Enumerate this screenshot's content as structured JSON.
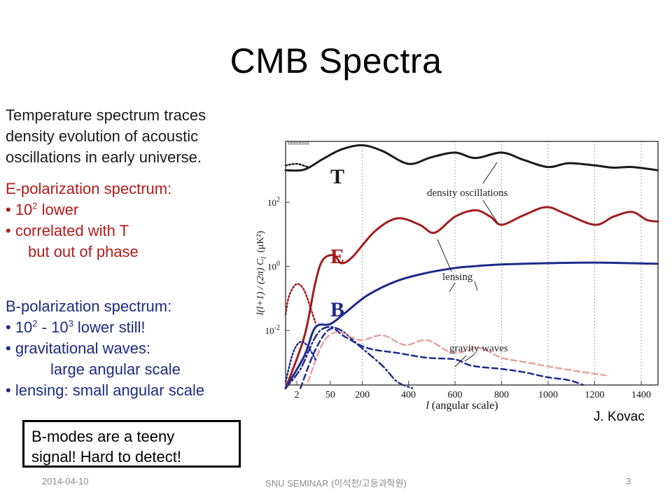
{
  "slide": {
    "title": "CMB Spectra",
    "temperature_text": [
      "Temperature spectrum traces",
      "density evolution of acoustic",
      "oscillations in early universe."
    ],
    "e_heading": "E-polarization spectrum:",
    "e_bullet1_base": "• 10",
    "e_bullet1_exp": "2",
    "e_bullet1_rest": " lower",
    "e_bullet2a": "• correlated with T",
    "e_bullet2b": "but out of phase",
    "b_heading": "B-polarization spectrum:",
    "b_bullet1_base": "• 10",
    "b_bullet1_exp1": "2",
    "b_bullet1_mid": " - 10",
    "b_bullet1_exp2": "3",
    "b_bullet1_rest": " lower still!",
    "b_bullet2a": "• gravitational waves:",
    "b_bullet2b": "large angular scale",
    "b_bullet3": "• lensing: small angular scale",
    "callout": [
      "B-modes are a teeny",
      "signal! Hard to detect!"
    ],
    "credit": "J. Kovac"
  },
  "footer": {
    "date": "2014-04-10",
    "center": "SNU SEMINAR (이석천/고등과학원)",
    "page": "3"
  },
  "colors": {
    "T": "#1a1a1a",
    "E": "#a21d1d",
    "B": "#1f2a8a",
    "pink": "#e8a0a0"
  },
  "chart_data": {
    "type": "line",
    "xlabel_var": "l",
    "xlabel_rest": " (angular scale)",
    "ylabel": "l(l+1) / (2π)  C",
    "ylabel_sub": "l",
    "ylabel_unit": "(μK²)",
    "x_ticks": [
      {
        "label": "2",
        "p": 0.03
      },
      {
        "label": "50",
        "p": 0.12
      },
      {
        "label": "200",
        "p": 0.206
      },
      {
        "label": "400",
        "p": 0.33
      },
      {
        "label": "600",
        "p": 0.455
      },
      {
        "label": "800",
        "p": 0.58
      },
      {
        "label": "1000",
        "p": 0.705
      },
      {
        "label": "1200",
        "p": 0.83
      },
      {
        "label": "1400",
        "p": 0.955
      }
    ],
    "y_ticks": [
      {
        "label": "10",
        "exp": "2",
        "v": 2
      },
      {
        "label": "10",
        "exp": "0",
        "v": 0
      },
      {
        "label": "10",
        "exp": "-2",
        "v": -2
      }
    ],
    "ylim": [
      -3.7,
      3.9
    ],
    "grid_x_p": [
      0.206,
      0.455,
      0.58,
      0.705,
      0.83,
      0.955
    ],
    "labels": {
      "T": "T",
      "E": "E",
      "B": "B"
    },
    "annotations": [
      "density oscillations",
      "lensing",
      "gravity waves"
    ],
    "series": [
      {
        "key": "T",
        "style": "solid",
        "points": [
          [
            0.0,
            3.0
          ],
          [
            0.05,
            3.02
          ],
          [
            0.1,
            3.35
          ],
          [
            0.15,
            3.65
          ],
          [
            0.206,
            3.78
          ],
          [
            0.26,
            3.6
          ],
          [
            0.33,
            3.2
          ],
          [
            0.39,
            3.4
          ],
          [
            0.455,
            3.55
          ],
          [
            0.51,
            3.38
          ],
          [
            0.58,
            3.55
          ],
          [
            0.64,
            3.32
          ],
          [
            0.705,
            3.1
          ],
          [
            0.76,
            3.22
          ],
          [
            0.83,
            3.15
          ],
          [
            0.88,
            3.08
          ],
          [
            0.93,
            3.1
          ],
          [
            1.0,
            3.0
          ]
        ]
      },
      {
        "key": "E",
        "style": "solid",
        "points": [
          [
            0.0,
            -3.8
          ],
          [
            0.05,
            -2.2
          ],
          [
            0.08,
            -0.5
          ],
          [
            0.1,
            0.2
          ],
          [
            0.13,
            0.35
          ],
          [
            0.15,
            0.1
          ],
          [
            0.18,
            0.3
          ],
          [
            0.24,
            1.1
          ],
          [
            0.3,
            1.5
          ],
          [
            0.36,
            1.3
          ],
          [
            0.4,
            1.05
          ],
          [
            0.455,
            1.55
          ],
          [
            0.51,
            1.75
          ],
          [
            0.55,
            1.55
          ],
          [
            0.58,
            1.3
          ],
          [
            0.64,
            1.6
          ],
          [
            0.7,
            1.85
          ],
          [
            0.75,
            1.65
          ],
          [
            0.83,
            1.3
          ],
          [
            0.88,
            1.55
          ],
          [
            0.93,
            1.7
          ],
          [
            0.97,
            1.45
          ],
          [
            1.0,
            1.4
          ]
        ]
      },
      {
        "key": "B",
        "style": "solid",
        "points": [
          [
            0.0,
            -3.8
          ],
          [
            0.05,
            -2.8
          ],
          [
            0.08,
            -1.9
          ],
          [
            0.12,
            -1.8
          ],
          [
            0.16,
            -1.45
          ],
          [
            0.22,
            -0.9
          ],
          [
            0.3,
            -0.45
          ],
          [
            0.38,
            -0.2
          ],
          [
            0.455,
            -0.05
          ],
          [
            0.5,
            0.0
          ],
          [
            0.58,
            0.06
          ],
          [
            0.7,
            0.1
          ],
          [
            0.83,
            0.12
          ],
          [
            0.93,
            0.1
          ],
          [
            1.0,
            0.08
          ]
        ]
      },
      {
        "key": "B",
        "style": "dashdot",
        "points": [
          [
            0.0,
            -3.8
          ],
          [
            0.04,
            -3.2
          ],
          [
            0.08,
            -2.2
          ],
          [
            0.11,
            -1.9
          ],
          [
            0.15,
            -2.0
          ],
          [
            0.2,
            -2.5
          ],
          [
            0.26,
            -3.1
          ],
          [
            0.3,
            -3.6
          ],
          [
            0.34,
            -3.8
          ]
        ]
      },
      {
        "key": "B",
        "style": "dashed",
        "points": [
          [
            0.04,
            -3.8
          ],
          [
            0.08,
            -2.6
          ],
          [
            0.12,
            -1.95
          ],
          [
            0.16,
            -2.2
          ],
          [
            0.22,
            -2.55
          ],
          [
            0.3,
            -2.7
          ],
          [
            0.38,
            -2.85
          ],
          [
            0.455,
            -2.9
          ],
          [
            0.5,
            -3.1
          ],
          [
            0.58,
            -3.2
          ],
          [
            0.64,
            -3.3
          ],
          [
            0.7,
            -3.45
          ],
          [
            0.76,
            -3.55
          ],
          [
            0.8,
            -3.7
          ]
        ]
      },
      {
        "key": "pink",
        "style": "dashed",
        "points": [
          [
            0.06,
            -3.6
          ],
          [
            0.1,
            -2.4
          ],
          [
            0.14,
            -2.05
          ],
          [
            0.2,
            -2.3
          ],
          [
            0.26,
            -2.15
          ],
          [
            0.32,
            -2.45
          ],
          [
            0.38,
            -2.3
          ],
          [
            0.45,
            -2.7
          ],
          [
            0.52,
            -2.55
          ],
          [
            0.58,
            -2.85
          ],
          [
            0.65,
            -3.0
          ],
          [
            0.72,
            -3.15
          ],
          [
            0.8,
            -3.3
          ],
          [
            0.86,
            -3.4
          ]
        ]
      },
      {
        "key": "E",
        "style": "dotted",
        "points": [
          [
            0.0,
            -1.5
          ],
          [
            0.01,
            -0.9
          ],
          [
            0.03,
            -0.55
          ],
          [
            0.05,
            -0.75
          ],
          [
            0.07,
            -1.4
          ],
          [
            0.08,
            -1.75
          ]
        ]
      },
      {
        "key": "B",
        "style": "dotted",
        "points": [
          [
            0.0,
            -3.6
          ],
          [
            0.02,
            -2.7
          ],
          [
            0.04,
            -2.35
          ],
          [
            0.06,
            -2.5
          ],
          [
            0.08,
            -2.9
          ]
        ]
      },
      {
        "key": "T",
        "style": "dotted",
        "points": [
          [
            0.0,
            3.15
          ],
          [
            0.03,
            3.2
          ],
          [
            0.06,
            3.1
          ]
        ]
      }
    ]
  }
}
